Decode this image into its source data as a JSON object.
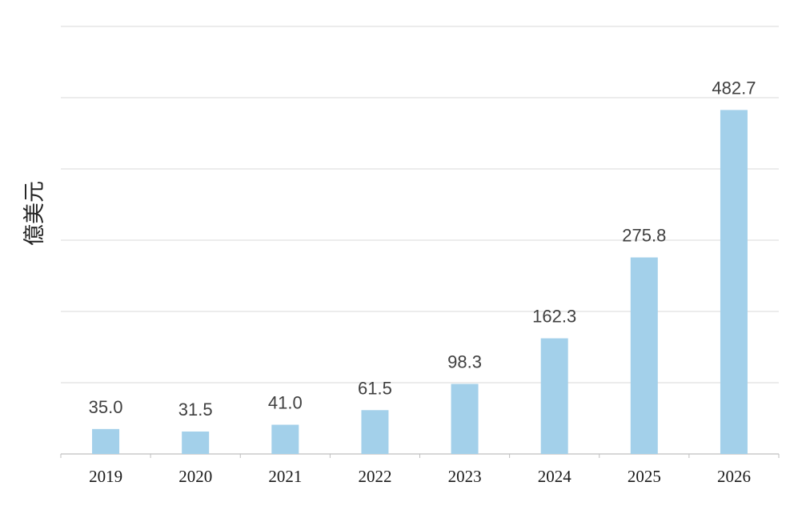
{
  "chart_data": {
    "type": "bar",
    "title": "",
    "xlabel": "",
    "ylabel": "億美元",
    "categories": [
      "2019",
      "2020",
      "2021",
      "2022",
      "2023",
      "2024",
      "2025",
      "2026"
    ],
    "values": [
      35.0,
      31.5,
      41.0,
      61.5,
      98.3,
      162.3,
      275.8,
      482.7
    ],
    "value_labels": [
      "35.0",
      "31.5",
      "41.0",
      "61.5",
      "98.3",
      "162.3",
      "275.8",
      "482.7"
    ],
    "ylim": [
      0,
      600
    ],
    "grid": true,
    "legend": "none",
    "bar_color": "#a3d0ea",
    "grid_color": "#d9d9d9"
  }
}
